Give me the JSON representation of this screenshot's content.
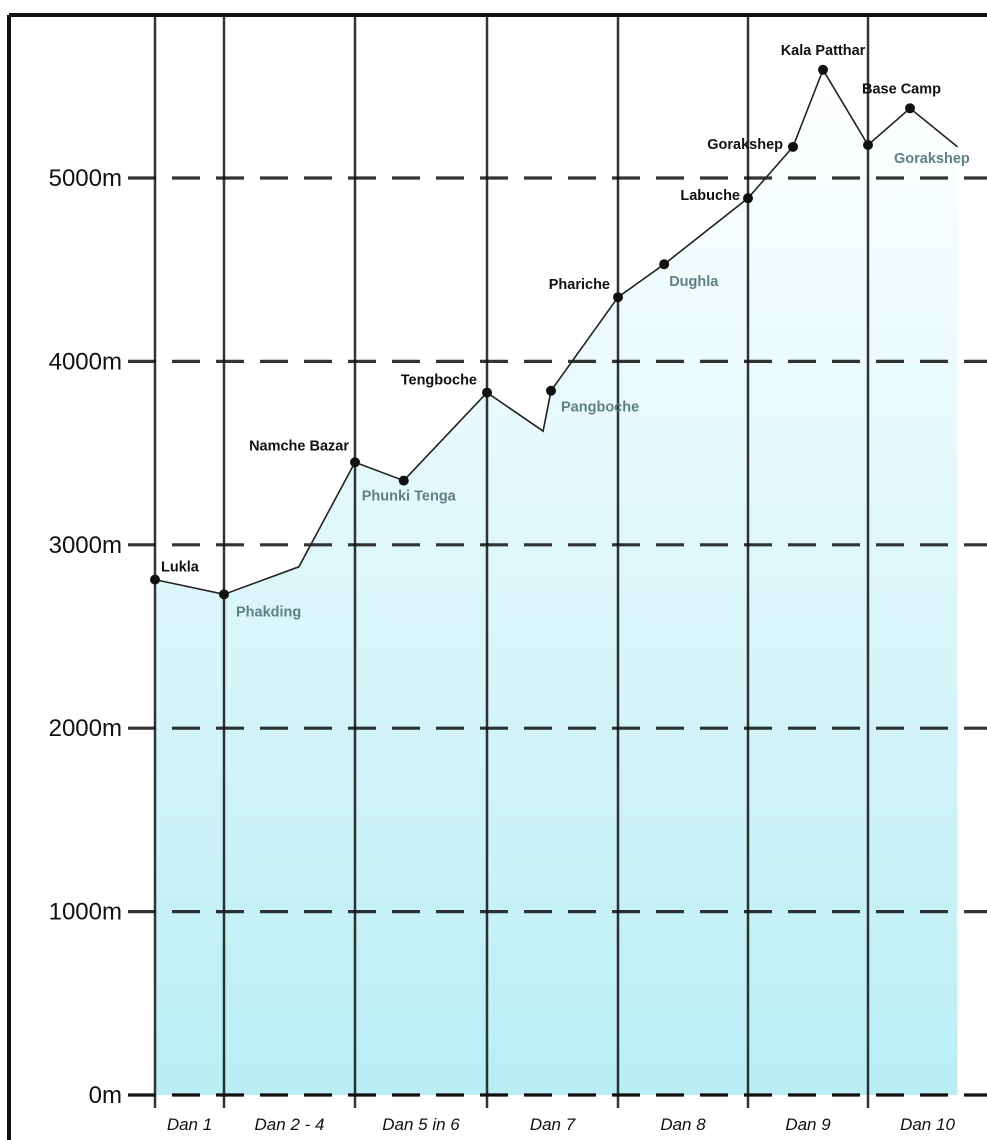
{
  "chart_data": {
    "type": "area",
    "title": "",
    "xlabel": "",
    "ylabel": "",
    "ylim": [
      0,
      5800
    ],
    "y_ticks": [
      "0m",
      "1000m",
      "2000m",
      "3000m",
      "4000m",
      "5000m"
    ],
    "y_tick_values": [
      0,
      1000,
      2000,
      3000,
      4000,
      5000
    ],
    "x_categories": [
      "Dan 1",
      "Dan 2 - 4",
      "Dan 5 in 6",
      "Dan 7",
      "Dan 8",
      "Dan 9",
      "Dan 10"
    ],
    "grid": true,
    "profile": [
      {
        "pos": 0.0,
        "elevation": 2810
      },
      {
        "pos": 1.0,
        "elevation": 2730
      },
      {
        "pos": 2.15,
        "elevation": 2880
      },
      {
        "pos": 3.0,
        "elevation": 3450
      },
      {
        "pos": 3.75,
        "elevation": 3350
      },
      {
        "pos": 5.0,
        "elevation": 3830
      },
      {
        "pos": 5.85,
        "elevation": 3620
      },
      {
        "pos": 5.97,
        "elevation": 3840
      },
      {
        "pos": 7.0,
        "elevation": 4350
      },
      {
        "pos": 7.7,
        "elevation": 4530
      },
      {
        "pos": 9.0,
        "elevation": 4890
      },
      {
        "pos": 9.75,
        "elevation": 5170
      },
      {
        "pos": 10.25,
        "elevation": 5590
      },
      {
        "pos": 11.0,
        "elevation": 5180
      },
      {
        "pos": 11.7,
        "elevation": 5380
      },
      {
        "pos": 12.5,
        "elevation": 5170
      }
    ],
    "stops": [
      {
        "name": "Lukla",
        "pos": 0.0,
        "elevation": 2810,
        "style": "dark"
      },
      {
        "name": "Phakding",
        "pos": 1.0,
        "elevation": 2730,
        "style": "light"
      },
      {
        "name": "Namche Bazar",
        "pos": 3.0,
        "elevation": 3450,
        "style": "dark"
      },
      {
        "name": "Phunki Tenga",
        "pos": 3.75,
        "elevation": 3350,
        "style": "light"
      },
      {
        "name": "Tengboche",
        "pos": 5.0,
        "elevation": 3830,
        "style": "dark"
      },
      {
        "name": "Pangboche",
        "pos": 5.97,
        "elevation": 3840,
        "style": "light"
      },
      {
        "name": "Phariche",
        "pos": 7.0,
        "elevation": 4350,
        "style": "dark"
      },
      {
        "name": "Dughla",
        "pos": 7.7,
        "elevation": 4530,
        "style": "light"
      },
      {
        "name": "Labuche",
        "pos": 9.0,
        "elevation": 4890,
        "style": "dark"
      },
      {
        "name": "Gorakshep",
        "pos": 9.75,
        "elevation": 5170,
        "style": "dark"
      },
      {
        "name": "Kala Patthar",
        "pos": 10.25,
        "elevation": 5590,
        "style": "dark"
      },
      {
        "name": "Gorakshep",
        "pos": 11.0,
        "elevation": 5180,
        "style": "light"
      },
      {
        "name": "Base Camp",
        "pos": 11.7,
        "elevation": 5380,
        "style": "dark"
      }
    ]
  },
  "colors": {
    "fill_top": "#ffffff",
    "fill_bottom": "#b9eef5",
    "line": "#222222",
    "dark_label": "#111111",
    "light_label": "#5f7f86",
    "grid": "#111111"
  }
}
